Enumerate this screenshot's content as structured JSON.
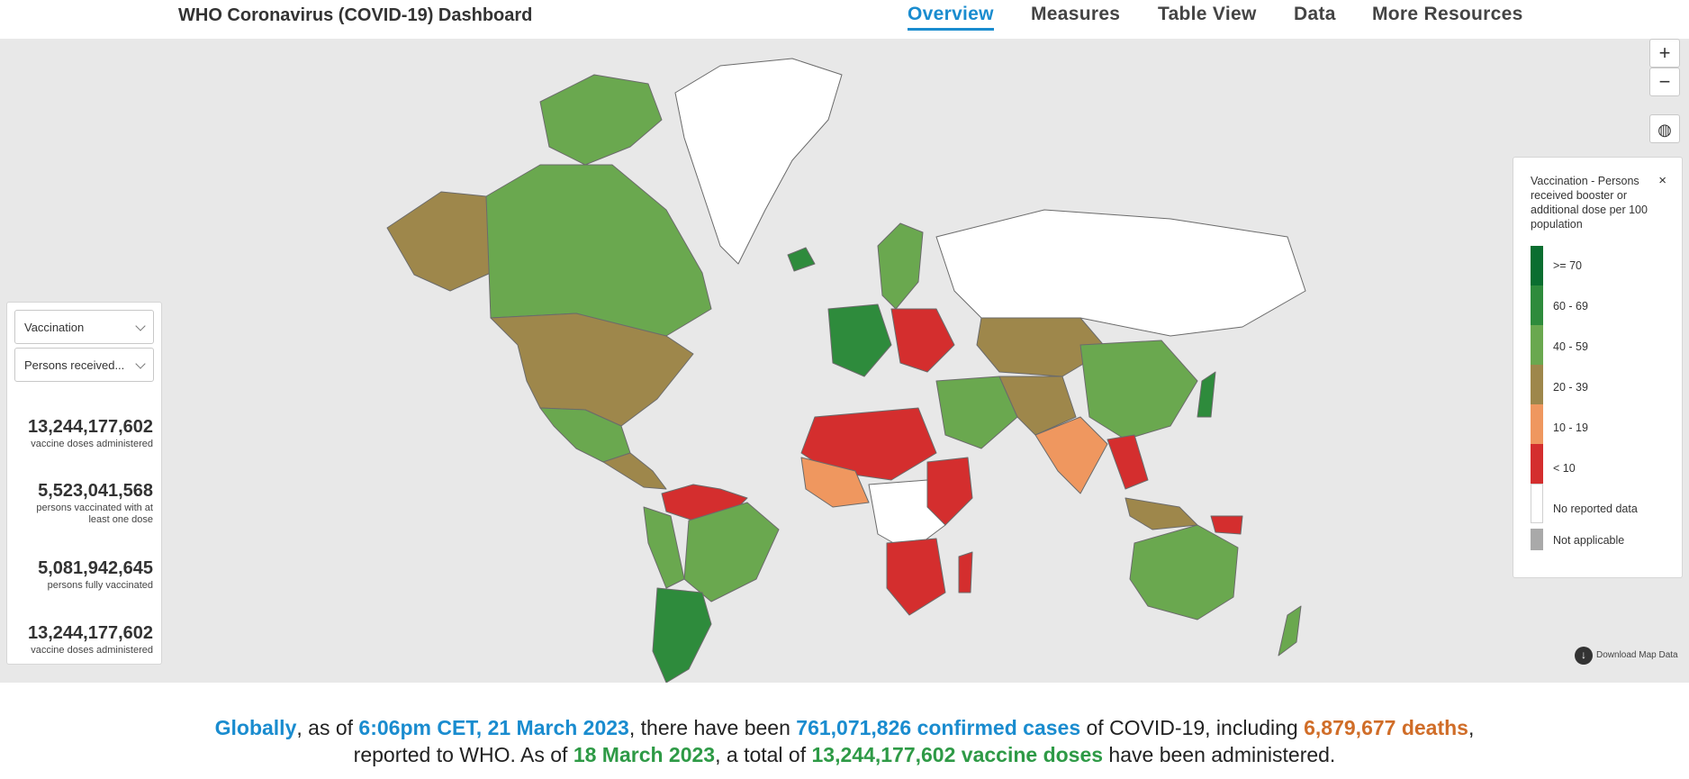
{
  "header": {
    "title": "WHO Coronavirus (COVID-19) Dashboard",
    "nav": [
      "Overview",
      "Measures",
      "Table View",
      "Data",
      "More Resources"
    ]
  },
  "left_panel": {
    "dropdown_metric": "Vaccination",
    "dropdown_submetric": "Persons received...",
    "stats": [
      {
        "value": "13,244,177,602",
        "label": "vaccine doses administered"
      },
      {
        "value": "5,523,041,568",
        "label": "persons vaccinated with at least one dose"
      },
      {
        "value": "5,081,942,645",
        "label": "persons fully vaccinated"
      },
      {
        "value": "13,244,177,602",
        "label": "vaccine doses administered"
      }
    ]
  },
  "map_controls": {
    "zoom_in": "+",
    "zoom_out": "−"
  },
  "legend": {
    "title": "Vaccination - Persons received booster or additional dose per 100 population",
    "close": "×",
    "items": [
      {
        "label": ">= 70",
        "color": "#0a6e30"
      },
      {
        "label": "60 - 69",
        "color": "#2e8b3c"
      },
      {
        "label": "40 - 59",
        "color": "#6aa84f"
      },
      {
        "label": "20 - 39",
        "color": "#9e874b"
      },
      {
        "label": "10 - 19",
        "color": "#ef975f"
      },
      {
        "label": "< 10",
        "color": "#d42e2e"
      },
      {
        "label": "No reported data",
        "color": "#ffffff"
      },
      {
        "label": "Not applicable",
        "color": "#a9a9a9"
      }
    ]
  },
  "download": "Download Map Data",
  "summary": {
    "s1": "Globally",
    "s2": ", as of ",
    "s3": "6:06pm CET, 21 March 2023",
    "s4": ", there have been ",
    "s5": "761,071,826 confirmed cases",
    "s6": " of COVID-19, including ",
    "s7": "6,879,677 deaths",
    "s8": ",",
    "s9": "reported to WHO. As of ",
    "s10": "18 March 2023",
    "s11": ", a total of ",
    "s12": "13,244,177,602 vaccine doses",
    "s13": " have been administered."
  }
}
